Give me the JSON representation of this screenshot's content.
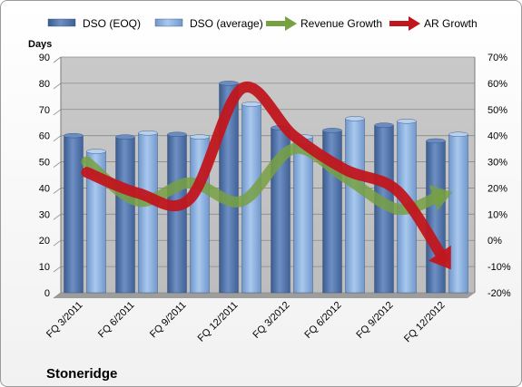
{
  "chart_data": {
    "type": "bar",
    "title": "Stoneridge",
    "ylabel": "Days",
    "ylim": [
      0,
      90
    ],
    "y2lim": [
      -20,
      70
    ],
    "y2_unit": "%",
    "legend_position": "top",
    "grid": true,
    "categories": [
      "FQ 3/2011",
      "FQ 6/2011",
      "FQ 9/2011",
      "FQ 12/2011",
      "FQ 3/2012",
      "FQ 6/2012",
      "FQ 9/2012",
      "FQ 12/2012"
    ],
    "series": [
      {
        "name": "DSO (EOQ)",
        "kind": "bar",
        "axis": "left",
        "color": "#4a6fa5",
        "values": [
          60,
          59.5,
          60.5,
          80,
          63,
          62,
          64,
          58
        ]
      },
      {
        "name": "DSO (average)",
        "kind": "bar",
        "axis": "left",
        "color": "#8db3e2",
        "values": [
          54,
          61,
          59.5,
          72,
          59.5,
          66.5,
          65.5,
          60.5
        ]
      },
      {
        "name": "Revenue Growth",
        "kind": "arrow-line",
        "axis": "right",
        "color": "#77a043",
        "values": [
          30,
          15,
          22,
          15,
          35,
          24,
          12,
          18
        ]
      },
      {
        "name": "AR Growth",
        "kind": "arrow-line",
        "axis": "right",
        "color": "#c0161d",
        "values": [
          26,
          18,
          16,
          58,
          40,
          27,
          19,
          -10
        ]
      }
    ],
    "yticks": [
      0,
      10,
      20,
      30,
      40,
      50,
      60,
      70,
      80,
      90
    ],
    "y2ticks": [
      -20,
      -10,
      0,
      10,
      20,
      30,
      40,
      50,
      60,
      70
    ]
  }
}
